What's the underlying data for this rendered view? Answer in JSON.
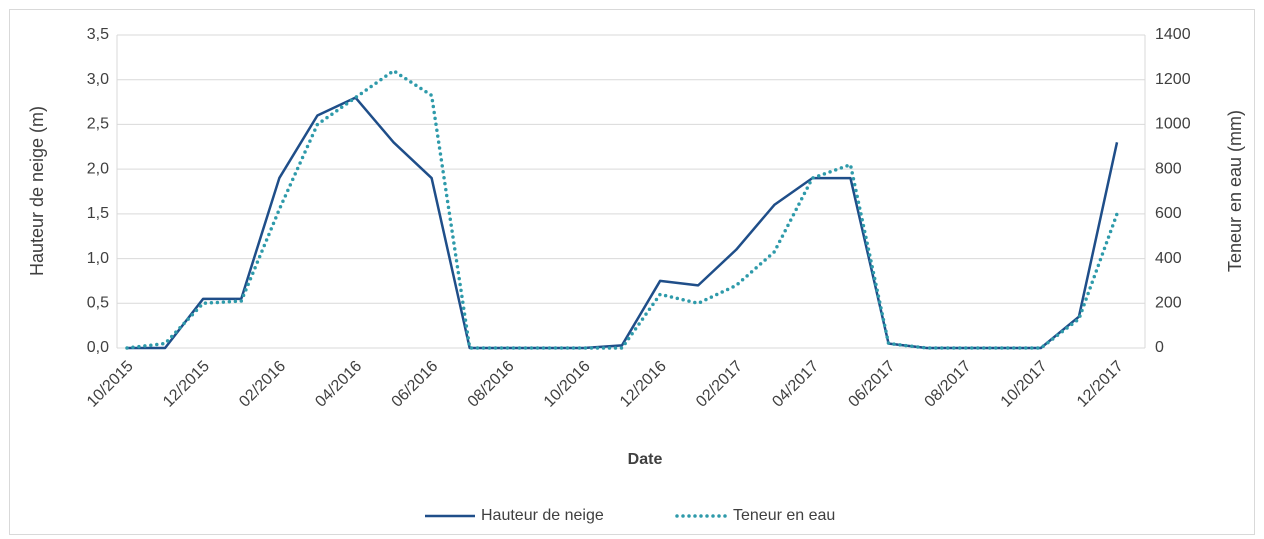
{
  "chart_data": {
    "type": "line",
    "x_label": "Date",
    "y_label": "Hauteur de neige (m)",
    "y2_label": "Teneur en eau (mm)",
    "x": [
      "10/2015",
      "11/2015",
      "12/2015",
      "01/2016",
      "02/2016",
      "03/2016",
      "04/2016",
      "05/2016",
      "06/2016",
      "07/2016",
      "08/2016",
      "09/2016",
      "10/2016",
      "11/2016",
      "12/2016",
      "01/2017",
      "02/2017",
      "03/2017",
      "04/2017",
      "05/2017",
      "06/2017",
      "07/2017",
      "08/2017",
      "09/2017",
      "10/2017",
      "11/2017",
      "12/2017"
    ],
    "xticks": [
      "10/2015",
      "12/2015",
      "02/2016",
      "04/2016",
      "06/2016",
      "08/2016",
      "10/2016",
      "12/2016",
      "02/2017",
      "04/2017",
      "06/2017",
      "08/2017",
      "10/2017",
      "12/2017"
    ],
    "series": [
      {
        "name": "Hauteur de neige",
        "color": "#1f4e89",
        "style": "solid",
        "values": [
          0,
          0,
          0.55,
          0.55,
          1.9,
          2.6,
          2.8,
          2.3,
          1.9,
          0,
          0,
          0,
          0,
          0.03,
          0.75,
          0.7,
          1.1,
          1.6,
          1.9,
          1.9,
          0.05,
          0,
          0,
          0,
          0,
          0.35,
          2.3
        ]
      },
      {
        "name": "Teneur en eau",
        "color": "#2e9aaa",
        "style": "dotted",
        "axis": "y2",
        "values": [
          0,
          20,
          200,
          210,
          620,
          1000,
          1120,
          1240,
          1130,
          0,
          0,
          0,
          0,
          0,
          240,
          200,
          280,
          430,
          760,
          820,
          20,
          0,
          0,
          0,
          0,
          130,
          600
        ]
      }
    ],
    "ylim": [
      0,
      3.5
    ],
    "yticks": [
      {
        "value": 0,
        "label": "0,0"
      },
      {
        "value": 0.5,
        "label": "0,5"
      },
      {
        "value": 1,
        "label": "1,0"
      },
      {
        "value": 1.5,
        "label": "1,5"
      },
      {
        "value": 2,
        "label": "2,0"
      },
      {
        "value": 2.5,
        "label": "2,5"
      },
      {
        "value": 3,
        "label": "3,0"
      },
      {
        "value": 3.5,
        "label": "3,5"
      }
    ],
    "y2lim": [
      0,
      1400
    ],
    "y2ticks": [
      0,
      200,
      400,
      600,
      800,
      1000,
      1200,
      1400
    ],
    "grid": true,
    "legend": "bottom"
  }
}
